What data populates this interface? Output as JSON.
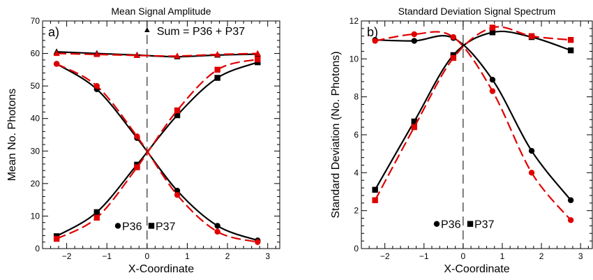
{
  "colors": {
    "black_series": "#000000",
    "red_series": "#e00000",
    "axis": "#000000",
    "background": "#ffffff"
  },
  "chart_data": [
    {
      "type": "line",
      "title": "Mean Signal Amplitude",
      "panel_label": "a)",
      "xlabel": "X-Coordinate",
      "ylabel": "Mean No. Photons",
      "xlim": [
        -2.6,
        3.3
      ],
      "ylim": [
        0,
        70
      ],
      "xticks": [
        -2,
        -1,
        0,
        1,
        2,
        3
      ],
      "yticks": [
        0,
        10,
        20,
        30,
        40,
        50,
        60,
        70
      ],
      "x": [
        -2.25,
        -1.25,
        -0.25,
        0.75,
        1.75,
        2.75
      ],
      "grid": false,
      "vline_x": 0,
      "annotation": "Sum = P36 + P37",
      "legend": [
        {
          "label": "P36",
          "marker": "circle"
        },
        {
          "label": "P37",
          "marker": "square"
        }
      ],
      "legend_placement": "bottom-center",
      "series": [
        {
          "color": "black",
          "dash": "solid",
          "marker": "triangle",
          "values": [
            60.5,
            60.0,
            59.5,
            59.0,
            59.5,
            59.8
          ]
        },
        {
          "color": "red",
          "dash": "dashed",
          "marker": "triangle",
          "values": [
            60.0,
            59.7,
            59.4,
            59.2,
            59.7,
            60.0
          ]
        },
        {
          "color": "black",
          "dash": "solid",
          "marker": "circle",
          "values": [
            56.8,
            49.0,
            34.0,
            17.8,
            7.0,
            2.5
          ]
        },
        {
          "color": "red",
          "dash": "dashed",
          "marker": "circle",
          "values": [
            56.8,
            50.0,
            34.5,
            16.5,
            5.2,
            2.0
          ]
        },
        {
          "color": "black",
          "dash": "solid",
          "marker": "square",
          "values": [
            3.8,
            11.2,
            25.8,
            41.0,
            52.5,
            57.3
          ]
        },
        {
          "color": "red",
          "dash": "dashed",
          "marker": "square",
          "values": [
            3.0,
            9.5,
            25.0,
            42.5,
            55.0,
            58.2
          ]
        }
      ]
    },
    {
      "type": "line",
      "title": "Standard Deviation Signal Spectrum",
      "panel_label": "b)",
      "xlabel": "X-Coordinate",
      "ylabel": "Standard Deviation (No. Photons)",
      "xlim": [
        -2.6,
        3.3
      ],
      "ylim": [
        0,
        12
      ],
      "xticks": [
        -2,
        -1,
        0,
        1,
        2,
        3
      ],
      "yticks": [
        0,
        2,
        4,
        6,
        8,
        10,
        12
      ],
      "x": [
        -2.25,
        -1.25,
        -0.25,
        0.75,
        1.75,
        2.75
      ],
      "grid": false,
      "vline_x": 0,
      "legend": [
        {
          "label": "P36",
          "marker": "circle"
        },
        {
          "label": "P37",
          "marker": "square"
        }
      ],
      "legend_placement": "bottom-center",
      "series": [
        {
          "color": "black",
          "dash": "solid",
          "marker": "circle",
          "values": [
            11.0,
            10.95,
            11.1,
            8.9,
            5.15,
            2.55
          ]
        },
        {
          "color": "red",
          "dash": "dashed",
          "marker": "circle",
          "values": [
            10.95,
            11.3,
            11.15,
            8.3,
            4.0,
            1.5
          ]
        },
        {
          "color": "black",
          "dash": "solid",
          "marker": "square",
          "values": [
            3.1,
            6.7,
            10.2,
            11.4,
            11.15,
            10.45
          ]
        },
        {
          "color": "red",
          "dash": "dashed",
          "marker": "square",
          "values": [
            2.55,
            6.4,
            10.05,
            11.65,
            11.2,
            11.0
          ]
        }
      ]
    }
  ]
}
